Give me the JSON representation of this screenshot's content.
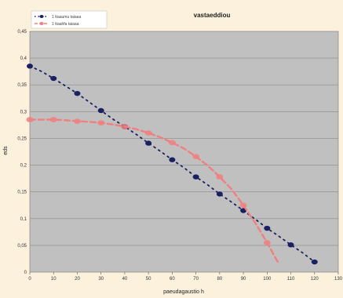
{
  "chart_data": {
    "type": "scatter",
    "title": "vastaeddiou",
    "xlabel": "paeudagaustio h",
    "ylabel": "eds",
    "xlim": [
      0,
      130
    ],
    "ylim": [
      0,
      0.45
    ],
    "x_ticks": [
      "0",
      "10",
      "20",
      "30",
      "40",
      "50",
      "60",
      "70",
      "80",
      "90",
      "100",
      "110",
      "120",
      "130"
    ],
    "y_ticks": [
      "0",
      "0,05",
      "0,1",
      "0,15",
      "0,2",
      "0,25",
      "0,3",
      "0,35",
      "0,4",
      "0,45"
    ],
    "grid": true,
    "legend": "top-left",
    "plot_background": "#c0c0c0",
    "series": [
      {
        "name": "1 ttaaumu taiaaa",
        "color": "#1a2060",
        "line_style": "dotted",
        "x": [
          0,
          5,
          10,
          15,
          20,
          25,
          30,
          35,
          40,
          45,
          50,
          55,
          60,
          65,
          70,
          75,
          80,
          85,
          90,
          95,
          100,
          105,
          110,
          115,
          120
        ],
        "y": [
          0.385,
          0.375,
          0.362,
          0.348,
          0.334,
          0.318,
          0.302,
          0.286,
          0.272,
          0.257,
          0.241,
          0.226,
          0.21,
          0.195,
          0.178,
          0.163,
          0.146,
          0.131,
          0.115,
          0.099,
          0.082,
          0.067,
          0.051,
          0.036,
          0.019
        ]
      },
      {
        "name": "1 ttaahfa taiaaa",
        "color": "#f08080",
        "line_style": "dashed",
        "x": [
          0,
          5,
          10,
          15,
          20,
          25,
          30,
          35,
          40,
          45,
          50,
          55,
          60,
          65,
          70,
          75,
          80,
          85,
          90,
          95,
          100,
          105
        ],
        "y": [
          0.285,
          0.285,
          0.285,
          0.284,
          0.282,
          0.281,
          0.279,
          0.276,
          0.272,
          0.267,
          0.26,
          0.252,
          0.242,
          0.231,
          0.216,
          0.199,
          0.178,
          0.155,
          0.125,
          0.092,
          0.055,
          0.015
        ]
      }
    ]
  }
}
